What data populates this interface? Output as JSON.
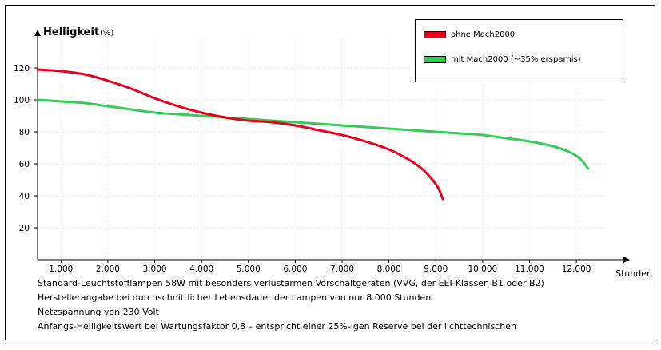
{
  "chart_data": {
    "type": "line",
    "ylabel": "Helligkeit",
    "ylabel_unit": "(%)",
    "xlabel": "Stunden",
    "x_ticks": [
      1000,
      2000,
      3000,
      4000,
      5000,
      6000,
      7000,
      8000,
      9000,
      10000,
      11000,
      12000
    ],
    "x_tick_labels": [
      "1.000",
      "2.000",
      "3.000",
      "4.000",
      "5.000",
      "6.000",
      "7.000",
      "8.000",
      "9.000",
      "10.000",
      "11.000",
      "12.000"
    ],
    "y_ticks": [
      20,
      40,
      60,
      80,
      100,
      120
    ],
    "y_tick_labels": [
      "20",
      "40",
      "60",
      "80",
      "100",
      "120"
    ],
    "xlim": [
      500,
      12800
    ],
    "ylim": [
      0,
      140
    ],
    "grid": true,
    "legend_position": "top-right",
    "series": [
      {
        "name": "ohne Mach2000",
        "color": "#e8001c",
        "x": [
          500,
          1000,
          1500,
          2000,
          2500,
          3000,
          3500,
          4000,
          4500,
          5000,
          5500,
          6000,
          6500,
          7000,
          7500,
          8000,
          8400,
          8700,
          8900,
          9050,
          9150
        ],
        "y": [
          119,
          118,
          116,
          112,
          107,
          101,
          96,
          92,
          89,
          87,
          86,
          84,
          81,
          78,
          74,
          69,
          63,
          57,
          51,
          45,
          38
        ]
      },
      {
        "name": "mit Mach2000 (~35% ersparnis)",
        "color": "#33cc55",
        "x": [
          500,
          1000,
          1500,
          2000,
          2500,
          3000,
          3500,
          4000,
          4500,
          5000,
          5500,
          6000,
          6500,
          7000,
          7500,
          8000,
          8500,
          9000,
          9500,
          10000,
          10500,
          11000,
          11500,
          11800,
          12000,
          12150,
          12250
        ],
        "y": [
          100,
          99,
          98,
          96,
          94,
          92,
          91,
          90,
          89,
          88,
          87,
          86,
          85,
          84,
          83,
          82,
          81,
          80,
          79,
          78,
          76,
          74,
          71,
          68,
          65,
          61,
          57
        ]
      }
    ]
  },
  "notes": [
    "Standard-Leuchtstofflampen 58W mit besonders verlustarmen Vorschaltgeräten (VVG, der EEI-Klassen B1 oder B2)",
    "Herstellerangabe bei durchschnittlicher Lebensdauer der Lampen von nur 8.000 Stunden",
    "Netzspannung von 230 Volt",
    "Anfangs-Helligkeitswert bei Wartungsfaktor 0,8 – entspricht einer 25%-igen Reserve bei der lichttechnischen"
  ]
}
